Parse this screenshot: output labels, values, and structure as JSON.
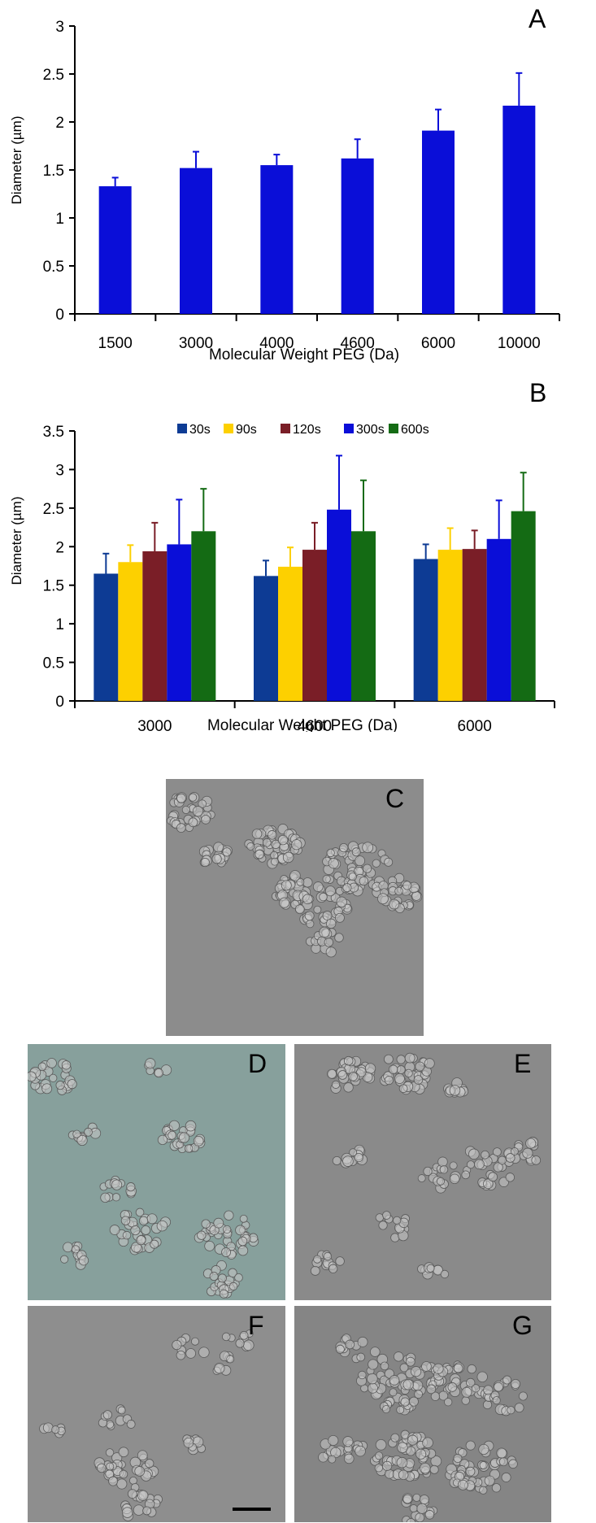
{
  "chart_data": [
    {
      "type": "bar",
      "panel": "A",
      "categories": [
        "1500",
        "3000",
        "4000",
        "4600",
        "6000",
        "10000"
      ],
      "series": [
        {
          "name": "Diameter",
          "color": "#0a0ed8",
          "values": [
            1.33,
            1.52,
            1.55,
            1.62,
            1.91,
            2.17
          ],
          "errors": [
            0.09,
            0.17,
            0.11,
            0.2,
            0.22,
            0.34
          ]
        }
      ],
      "xlabel": "Molecular Weight PEG (Da)",
      "ylabel": "Diameter (µm)",
      "ylim": [
        0,
        3
      ],
      "yticks": [
        "0",
        "0.5",
        "1",
        "1.5",
        "2",
        "2.5",
        "3"
      ],
      "grid": false
    },
    {
      "type": "bar",
      "panel": "B",
      "categories": [
        "3000",
        "4600",
        "6000"
      ],
      "series": [
        {
          "name": "30s",
          "color": "#0d3b94",
          "values": [
            1.65,
            1.62,
            1.84
          ],
          "errors": [
            0.26,
            0.2,
            0.19
          ]
        },
        {
          "name": "90s",
          "color": "#fdd000",
          "values": [
            1.8,
            1.74,
            1.96
          ],
          "errors": [
            0.22,
            0.25,
            0.28
          ]
        },
        {
          "name": "120s",
          "color": "#7a1e27",
          "values": [
            1.94,
            1.96,
            1.97
          ],
          "errors": [
            0.37,
            0.35,
            0.24
          ]
        },
        {
          "name": "300s",
          "color": "#0a0ed8",
          "values": [
            2.03,
            2.48,
            2.1
          ],
          "errors": [
            0.58,
            0.7,
            0.5
          ]
        },
        {
          "name": "600s",
          "color": "#146b14",
          "values": [
            2.2,
            2.2,
            2.46
          ],
          "errors": [
            0.55,
            0.66,
            0.5
          ]
        }
      ],
      "legend_position": "top",
      "xlabel": "Molecular Weight PEG (Da)",
      "ylabel": "Diameter (µm)",
      "ylim": [
        0,
        3.5
      ],
      "yticks": [
        "0",
        "0.5",
        "1",
        "1.5",
        "2",
        "2.5",
        "3",
        "3.5"
      ],
      "grid": false
    }
  ],
  "micrographs": {
    "C": {
      "label": "C",
      "tint": "#8c8c8c"
    },
    "D": {
      "label": "D",
      "tint": "#87a09c"
    },
    "E": {
      "label": "E",
      "tint": "#8a8a8a"
    },
    "F": {
      "label": "F",
      "tint": "#8e8e8e"
    },
    "G": {
      "label": "G",
      "tint": "#858585"
    }
  }
}
